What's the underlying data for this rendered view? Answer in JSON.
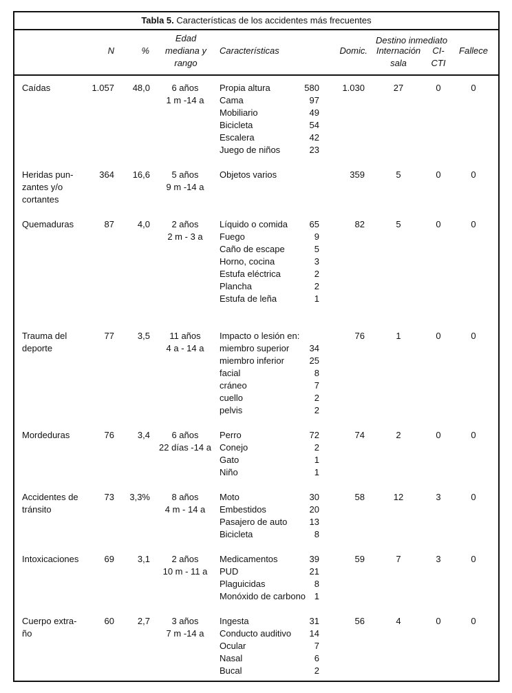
{
  "title": {
    "label": "Tabla 5.",
    "text": "Características de los accidentes más frecuentes"
  },
  "headers": {
    "n": "N",
    "pct": "%",
    "age": [
      "Edad",
      "mediana y",
      "rango"
    ],
    "chars": "Características",
    "destino": "Destino inmediato",
    "domic": "Domic.",
    "intern": [
      "Internación",
      "sala"
    ],
    "cti": [
      "CI-",
      "CTI"
    ],
    "fallece": "Fallece"
  },
  "rows": [
    {
      "name": [
        "Caídas"
      ],
      "n": "1.057",
      "pct": "48,0",
      "age": [
        "6 años",
        "1 m -14 a"
      ],
      "chars": [
        [
          "Propia altura",
          "580"
        ],
        [
          "Cama",
          "97"
        ],
        [
          "Mobiliario",
          "49"
        ],
        [
          "Bicicleta",
          "54"
        ],
        [
          "Escalera",
          "42"
        ],
        [
          "Juego de niños",
          "23"
        ]
      ],
      "domic": "1.030",
      "intern": "27",
      "cti": "0",
      "fallece": "0"
    },
    {
      "name": [
        "Heridas pun-",
        "zantes y/o",
        "cortantes"
      ],
      "n": "364",
      "pct": "16,6",
      "age": [
        "5 años",
        "9 m -14 a"
      ],
      "chars": [
        [
          "Objetos varios",
          ""
        ]
      ],
      "domic": "359",
      "intern": "5",
      "cti": "0",
      "fallece": "0"
    },
    {
      "name": [
        "Quemaduras"
      ],
      "n": "87",
      "pct": "4,0",
      "age": [
        "2 años",
        "2 m - 3 a"
      ],
      "chars": [
        [
          "Líquido o comida",
          "65"
        ],
        [
          "Fuego",
          "9"
        ],
        [
          "Caño de escape",
          "5"
        ],
        [
          "Horno, cocina",
          "3"
        ],
        [
          "Estufa eléctrica",
          "2"
        ],
        [
          "Plancha",
          "2"
        ],
        [
          "Estufa de leña",
          "1"
        ]
      ],
      "domic": "82",
      "intern": "5",
      "cti": "0",
      "fallece": "0"
    },
    {
      "name": [
        "Trauma del",
        "deporte"
      ],
      "n": "77",
      "pct": "3,5",
      "age": [
        "11 años",
        "4 a - 14 a"
      ],
      "chars": [
        [
          "Impacto o lesión en:",
          ""
        ],
        [
          "miembro superior",
          "34"
        ],
        [
          "miembro inferior",
          "25"
        ],
        [
          "facial",
          "8"
        ],
        [
          "cráneo",
          "7"
        ],
        [
          "cuello",
          "2"
        ],
        [
          "pelvis",
          "2"
        ]
      ],
      "domic": "76",
      "intern": "1",
      "cti": "0",
      "fallece": "0"
    },
    {
      "name": [
        "Mordeduras"
      ],
      "n": "76",
      "pct": "3,4",
      "age": [
        "6 años",
        "22 días -14 a"
      ],
      "chars": [
        [
          "Perro",
          "72"
        ],
        [
          "Conejo",
          "2"
        ],
        [
          "Gato",
          "1"
        ],
        [
          "Niño",
          "1"
        ]
      ],
      "domic": "74",
      "intern": "2",
      "cti": "0",
      "fallece": "0"
    },
    {
      "name": [
        "Accidentes de",
        "tránsito"
      ],
      "n": "73",
      "pct": "3,3%",
      "age": [
        "8 años",
        "4 m - 14 a"
      ],
      "chars": [
        [
          "Moto",
          "30"
        ],
        [
          "Embestidos",
          "20"
        ],
        [
          "Pasajero de auto",
          "13"
        ],
        [
          "Bicicleta",
          "8"
        ]
      ],
      "domic": "58",
      "intern": "12",
      "cti": "3",
      "fallece": "0"
    },
    {
      "name": [
        "Intoxicaciones"
      ],
      "n": "69",
      "pct": "3,1",
      "age": [
        "2 años",
        "10 m - 11 a"
      ],
      "chars": [
        [
          "Medicamentos",
          "39"
        ],
        [
          "PUD",
          "21"
        ],
        [
          "Plaguicidas",
          "8"
        ],
        [
          "Monóxido de carbono",
          "1"
        ]
      ],
      "domic": "59",
      "intern": "7",
      "cti": "3",
      "fallece": "0"
    },
    {
      "name": [
        "Cuerpo extra-",
        "ño"
      ],
      "n": "60",
      "pct": "2,7",
      "age": [
        "3 años",
        "7 m -14 a"
      ],
      "chars": [
        [
          "Ingesta",
          "31"
        ],
        [
          "Conducto auditivo",
          "14"
        ],
        [
          "Ocular",
          "7"
        ],
        [
          "Nasal",
          "6"
        ],
        [
          "Bucal",
          "2"
        ]
      ],
      "domic": "56",
      "intern": "4",
      "cti": "0",
      "fallece": "0"
    }
  ]
}
